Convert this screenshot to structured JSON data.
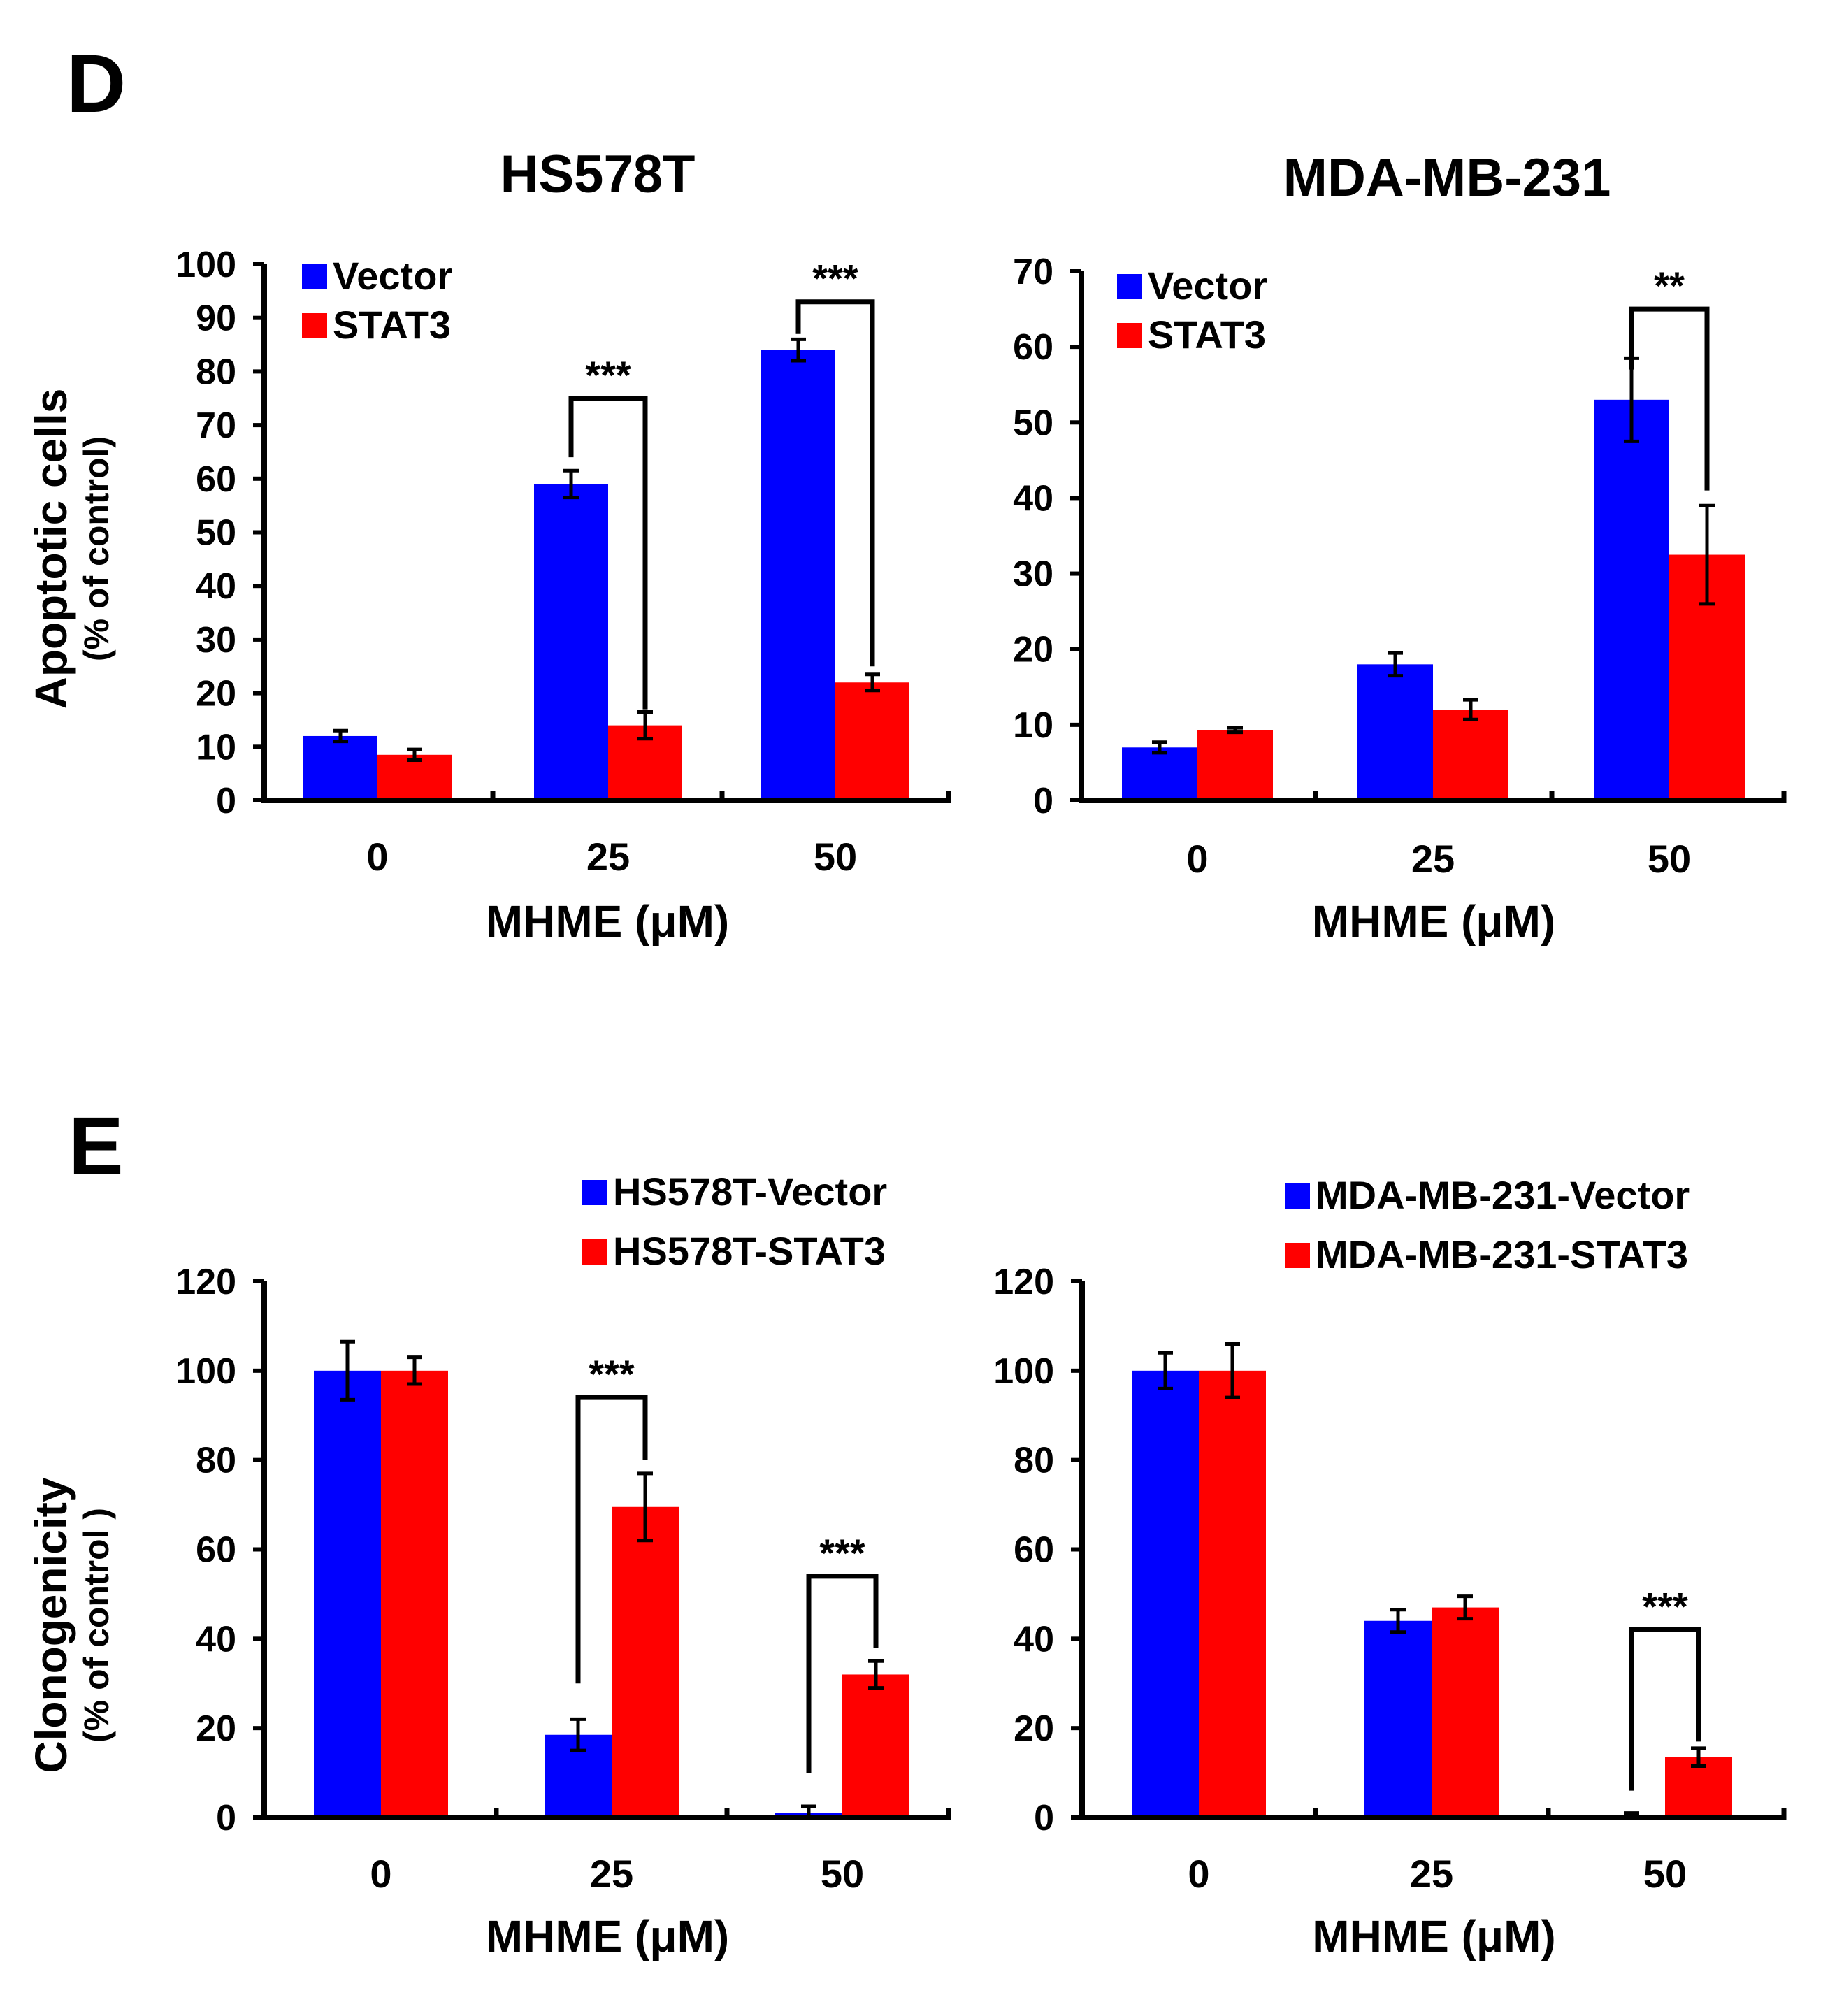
{
  "panels": {
    "d_letter": "D",
    "e_letter": "E",
    "d_ylabel_main": "Apoptotic cells",
    "d_ylabel_sub": "(% of control)",
    "e_ylabel_main": "Clonogenicity",
    "e_ylabel_sub": "(% of control )"
  },
  "colors": {
    "vector": "#0000ff",
    "stat3": "#ff0000",
    "axis": "#000000"
  },
  "chart_data": [
    {
      "id": "d_hs578t",
      "type": "bar",
      "title": "HS578T",
      "xlabel": "MHME (μM)",
      "ylabel": "Apoptotic cells (% of control)",
      "categories": [
        "0",
        "25",
        "50"
      ],
      "ylim": [
        0,
        100
      ],
      "yticks": [
        "0",
        "10",
        "20",
        "30",
        "40",
        "50",
        "60",
        "70",
        "80",
        "90",
        "100"
      ],
      "legend": [
        "Vector",
        "STAT3"
      ],
      "legend_position": "top-left",
      "series": [
        {
          "name": "Vector",
          "values": [
            12,
            59,
            84
          ],
          "errors": [
            1,
            2.5,
            2
          ]
        },
        {
          "name": "STAT3",
          "values": [
            8.5,
            14,
            22
          ],
          "errors": [
            1,
            2.5,
            1.5
          ]
        }
      ],
      "annotations": [
        {
          "category": "25",
          "text": "***",
          "vector_bottom": 64,
          "stat3_bottom": 17,
          "bracket_top": 75
        },
        {
          "category": "50",
          "text": "***",
          "vector_bottom": 87,
          "stat3_bottom": 25,
          "bracket_top": 93
        }
      ]
    },
    {
      "id": "d_mdamb231",
      "type": "bar",
      "title": "MDA-MB-231",
      "xlabel": "MHME  (μM)",
      "ylabel": "",
      "categories": [
        "0",
        "25",
        "50"
      ],
      "ylim": [
        0,
        70
      ],
      "yticks": [
        "0",
        "10",
        "20",
        "30",
        "40",
        "50",
        "60",
        "70"
      ],
      "legend": [
        "Vector",
        "STAT3"
      ],
      "legend_position": "top-left",
      "series": [
        {
          "name": "Vector",
          "values": [
            7,
            18,
            53
          ],
          "errors": [
            0.7,
            1.5,
            5.5
          ]
        },
        {
          "name": "STAT3",
          "values": [
            9.3,
            12,
            32.5
          ],
          "errors": [
            0.3,
            1.3,
            6.5
          ]
        }
      ],
      "annotations": [
        {
          "category": "50",
          "text": "**",
          "vector_bottom": 57,
          "stat3_bottom": 41,
          "bracket_top": 65
        }
      ]
    },
    {
      "id": "e_hs578t",
      "type": "bar",
      "title": "",
      "xlabel": "MHME (μM)",
      "ylabel": "Clonogenicity (% of control )",
      "categories": [
        "0",
        "25",
        "50"
      ],
      "ylim": [
        0,
        120
      ],
      "yticks": [
        "0",
        "20",
        "40",
        "60",
        "80",
        "100",
        "120"
      ],
      "legend": [
        "HS578T-Vector",
        "HS578T-STAT3"
      ],
      "legend_position": "top-right",
      "series": [
        {
          "name": "HS578T-Vector",
          "values": [
            100,
            18.5,
            1
          ],
          "errors": [
            6.5,
            3.5,
            1.5
          ]
        },
        {
          "name": "HS578T-STAT3",
          "values": [
            100,
            69.5,
            32
          ],
          "errors": [
            3,
            7.5,
            3
          ]
        }
      ],
      "annotations": [
        {
          "category": "25",
          "text": "***",
          "vector_bottom": 30,
          "stat3_bottom": 80,
          "bracket_top": 94
        },
        {
          "category": "50",
          "text": "***",
          "vector_bottom": 10,
          "stat3_bottom": 38,
          "bracket_top": 54
        }
      ]
    },
    {
      "id": "e_mdamb231",
      "type": "bar",
      "title": "",
      "xlabel": "MHME (μM)",
      "ylabel": "",
      "categories": [
        "0",
        "25",
        "50"
      ],
      "ylim": [
        0,
        120
      ],
      "yticks": [
        "0",
        "20",
        "40",
        "60",
        "80",
        "100",
        "120"
      ],
      "legend": [
        "MDA-MB-231-Vector",
        "MDA-MB-231-STAT3"
      ],
      "legend_position": "top-right",
      "series": [
        {
          "name": "MDA-MB-231-Vector",
          "values": [
            100,
            44,
            0.5
          ],
          "errors": [
            4,
            2.5,
            0.5
          ]
        },
        {
          "name": "MDA-MB-231-STAT3",
          "values": [
            100,
            47,
            13.5
          ],
          "errors": [
            6,
            2.5,
            2
          ]
        }
      ],
      "annotations": [
        {
          "category": "50",
          "text": "***",
          "vector_bottom": 6,
          "stat3_bottom": 17,
          "bracket_top": 42
        }
      ]
    }
  ]
}
